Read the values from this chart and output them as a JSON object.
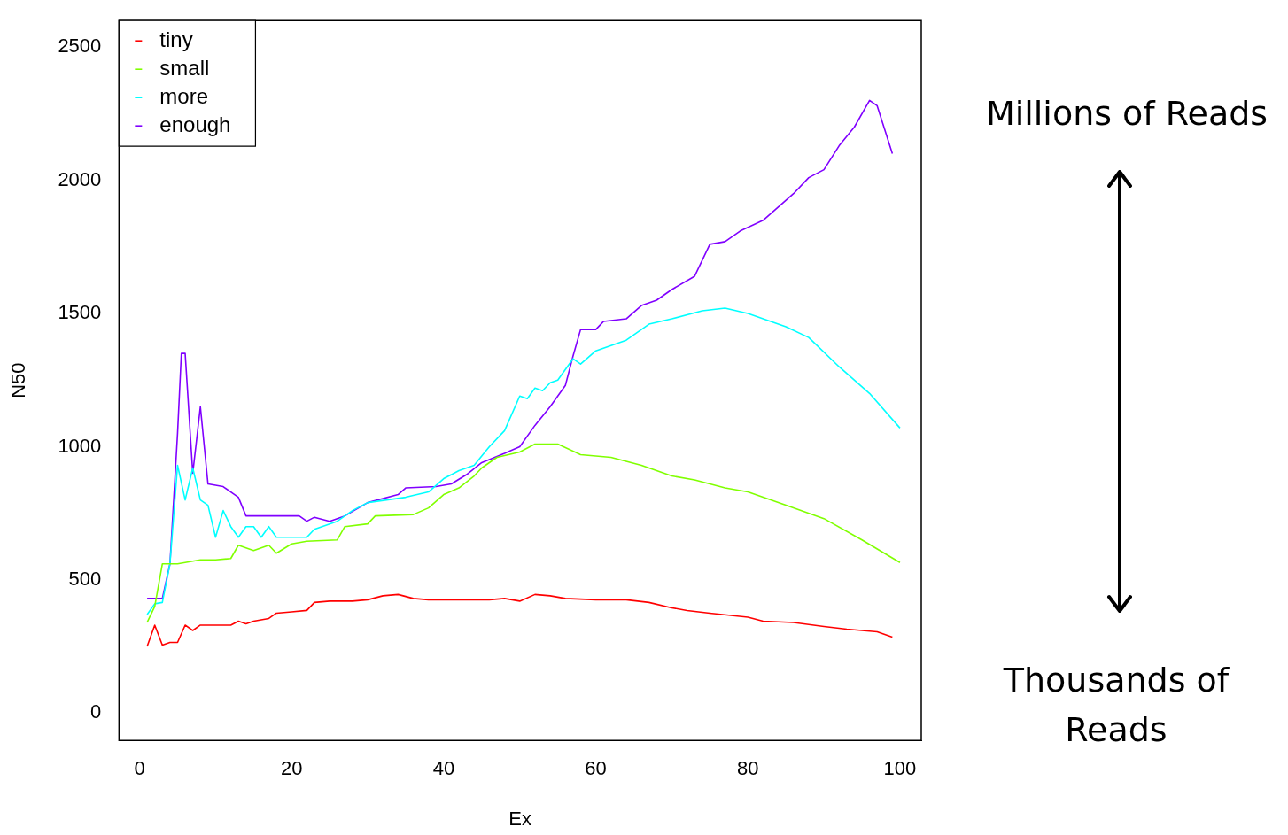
{
  "chart_data": {
    "type": "line",
    "xlabel": "Ex",
    "ylabel": "N50",
    "xlim": [
      -2.7,
      102.8
    ],
    "xticks": [
      0,
      20,
      40,
      60,
      80,
      100
    ],
    "ylim": [
      -103,
      2600
    ],
    "yticks": [
      0,
      500,
      1000,
      1500,
      2000,
      2500
    ],
    "grid": false,
    "legend": "top left",
    "marker": "none",
    "line_style": "solid",
    "annotations": [
      "Millions of Reads",
      "Thousands of Reads"
    ],
    "series": [
      {
        "name": "tiny",
        "color": "#ff0000",
        "x": [
          1,
          2,
          3,
          4,
          5,
          6,
          7,
          8,
          10,
          12,
          13,
          14,
          15,
          17,
          18,
          20,
          22,
          23,
          25,
          28,
          30,
          32,
          34,
          36,
          38,
          42,
          46,
          48,
          50,
          52,
          54,
          56,
          60,
          64,
          67,
          70,
          72,
          75,
          80,
          82,
          86,
          90,
          93,
          97,
          99
        ],
        "values": [
          250,
          330,
          255,
          265,
          265,
          330,
          310,
          330,
          330,
          330,
          345,
          335,
          345,
          355,
          375,
          380,
          385,
          415,
          420,
          420,
          425,
          440,
          445,
          430,
          425,
          425,
          425,
          430,
          420,
          445,
          440,
          430,
          425,
          425,
          415,
          395,
          385,
          375,
          360,
          345,
          340,
          325,
          315,
          305,
          285
        ]
      },
      {
        "name": "small",
        "color": "#80ff00",
        "x": [
          1,
          2,
          3,
          5,
          8,
          10,
          12,
          13,
          15,
          17,
          18,
          20,
          22,
          26,
          27,
          30,
          31,
          36,
          38,
          40,
          42,
          44,
          45,
          47,
          50,
          52,
          55,
          58,
          62,
          66,
          70,
          73,
          77,
          80,
          85,
          90,
          95,
          100
        ],
        "values": [
          340,
          400,
          560,
          560,
          575,
          575,
          580,
          630,
          610,
          630,
          600,
          635,
          645,
          650,
          700,
          710,
          740,
          745,
          770,
          820,
          845,
          890,
          920,
          960,
          980,
          1010,
          1010,
          970,
          960,
          930,
          890,
          875,
          845,
          830,
          780,
          730,
          650,
          565
        ]
      },
      {
        "name": "more",
        "color": "#00ffff",
        "x": [
          1,
          2,
          3,
          4,
          5,
          6,
          7,
          8,
          9,
          10,
          11,
          12,
          13,
          14,
          15,
          16,
          17,
          18,
          22,
          23,
          26,
          28,
          30,
          35,
          38,
          40,
          42,
          44,
          46,
          48,
          50,
          51,
          52,
          53,
          54,
          55,
          57,
          58,
          60,
          62,
          64,
          67,
          70,
          74,
          77,
          80,
          85,
          88,
          92,
          96,
          100
        ],
        "values": [
          370,
          410,
          415,
          560,
          930,
          800,
          920,
          800,
          780,
          660,
          760,
          700,
          660,
          700,
          700,
          660,
          700,
          660,
          660,
          690,
          720,
          760,
          790,
          810,
          830,
          880,
          910,
          930,
          1000,
          1060,
          1190,
          1180,
          1220,
          1210,
          1240,
          1250,
          1330,
          1310,
          1360,
          1380,
          1400,
          1460,
          1480,
          1510,
          1520,
          1500,
          1450,
          1410,
          1300,
          1200,
          1070
        ]
      },
      {
        "name": "enough",
        "color": "#8000ff",
        "x": [
          1,
          3,
          4,
          5,
          5.5,
          6,
          7,
          8,
          9,
          11,
          13,
          14,
          21,
          22,
          23,
          25,
          27,
          30,
          34,
          35,
          39,
          41,
          43,
          45,
          48,
          50,
          52,
          54,
          56,
          57,
          58,
          60,
          61,
          64,
          66,
          68,
          70,
          73,
          74,
          75,
          77,
          79,
          82,
          86,
          88,
          90,
          92,
          94,
          96,
          97,
          99
        ],
        "values": [
          430,
          430,
          560,
          1050,
          1350,
          1350,
          900,
          1150,
          860,
          850,
          810,
          740,
          740,
          720,
          735,
          720,
          740,
          790,
          820,
          845,
          850,
          860,
          895,
          940,
          975,
          1000,
          1080,
          1150,
          1230,
          1340,
          1440,
          1440,
          1470,
          1480,
          1530,
          1550,
          1590,
          1640,
          1700,
          1760,
          1770,
          1810,
          1850,
          1950,
          2010,
          2040,
          2130,
          2200,
          2300,
          2280,
          2100
        ]
      }
    ]
  }
}
